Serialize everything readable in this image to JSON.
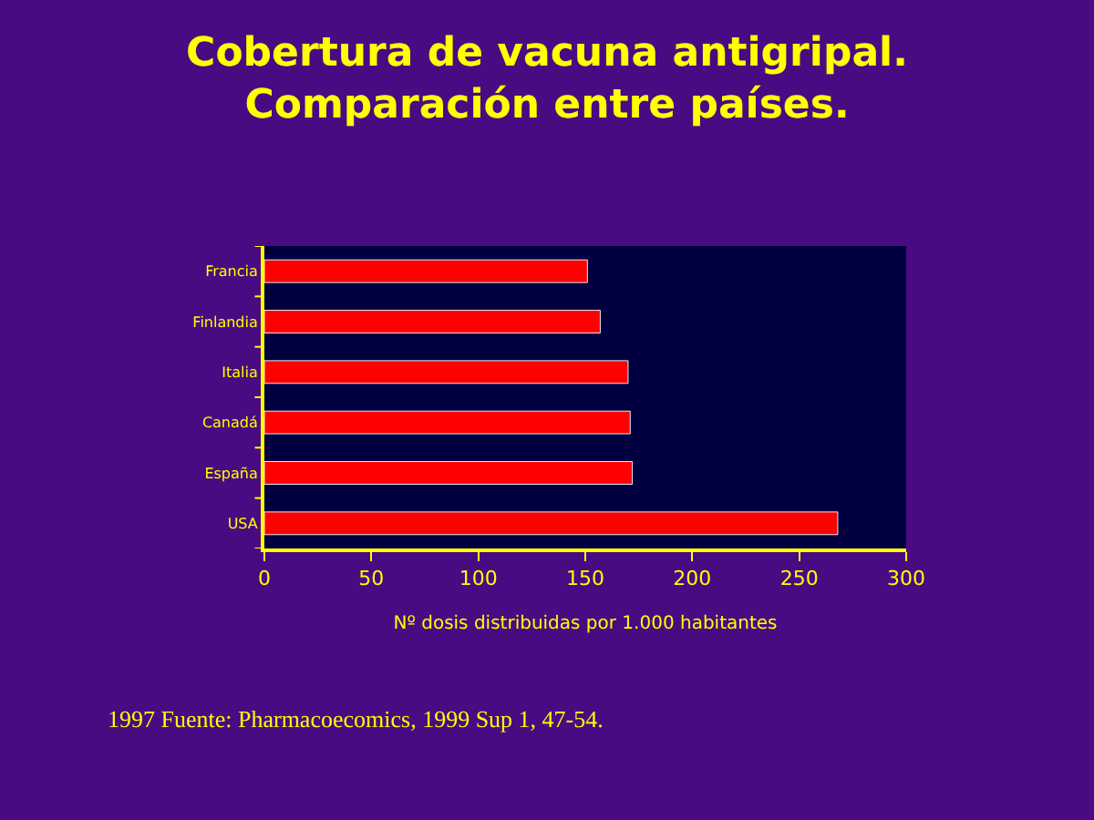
{
  "chart_data": {
    "type": "bar",
    "orientation": "horizontal",
    "title": "Cobertura de vacuna antigripal.\nComparación entre países.",
    "xlabel": "Nº dosis distribuidas por 1.000 habitantes",
    "categories": [
      "Francia",
      "Finlandia",
      "Italia",
      "Canadá",
      "España",
      "USA"
    ],
    "values": [
      151,
      157,
      170,
      171,
      172,
      268
    ],
    "color": "#ff0000",
    "xlim": [
      0,
      300
    ],
    "xticks": [
      0,
      50,
      100,
      150,
      200,
      250,
      300
    ],
    "grid": false,
    "legend": false,
    "annotations": [
      "1997 Fuente: Pharmacoecomics, 1999 Sup 1, 47-54."
    ]
  }
}
